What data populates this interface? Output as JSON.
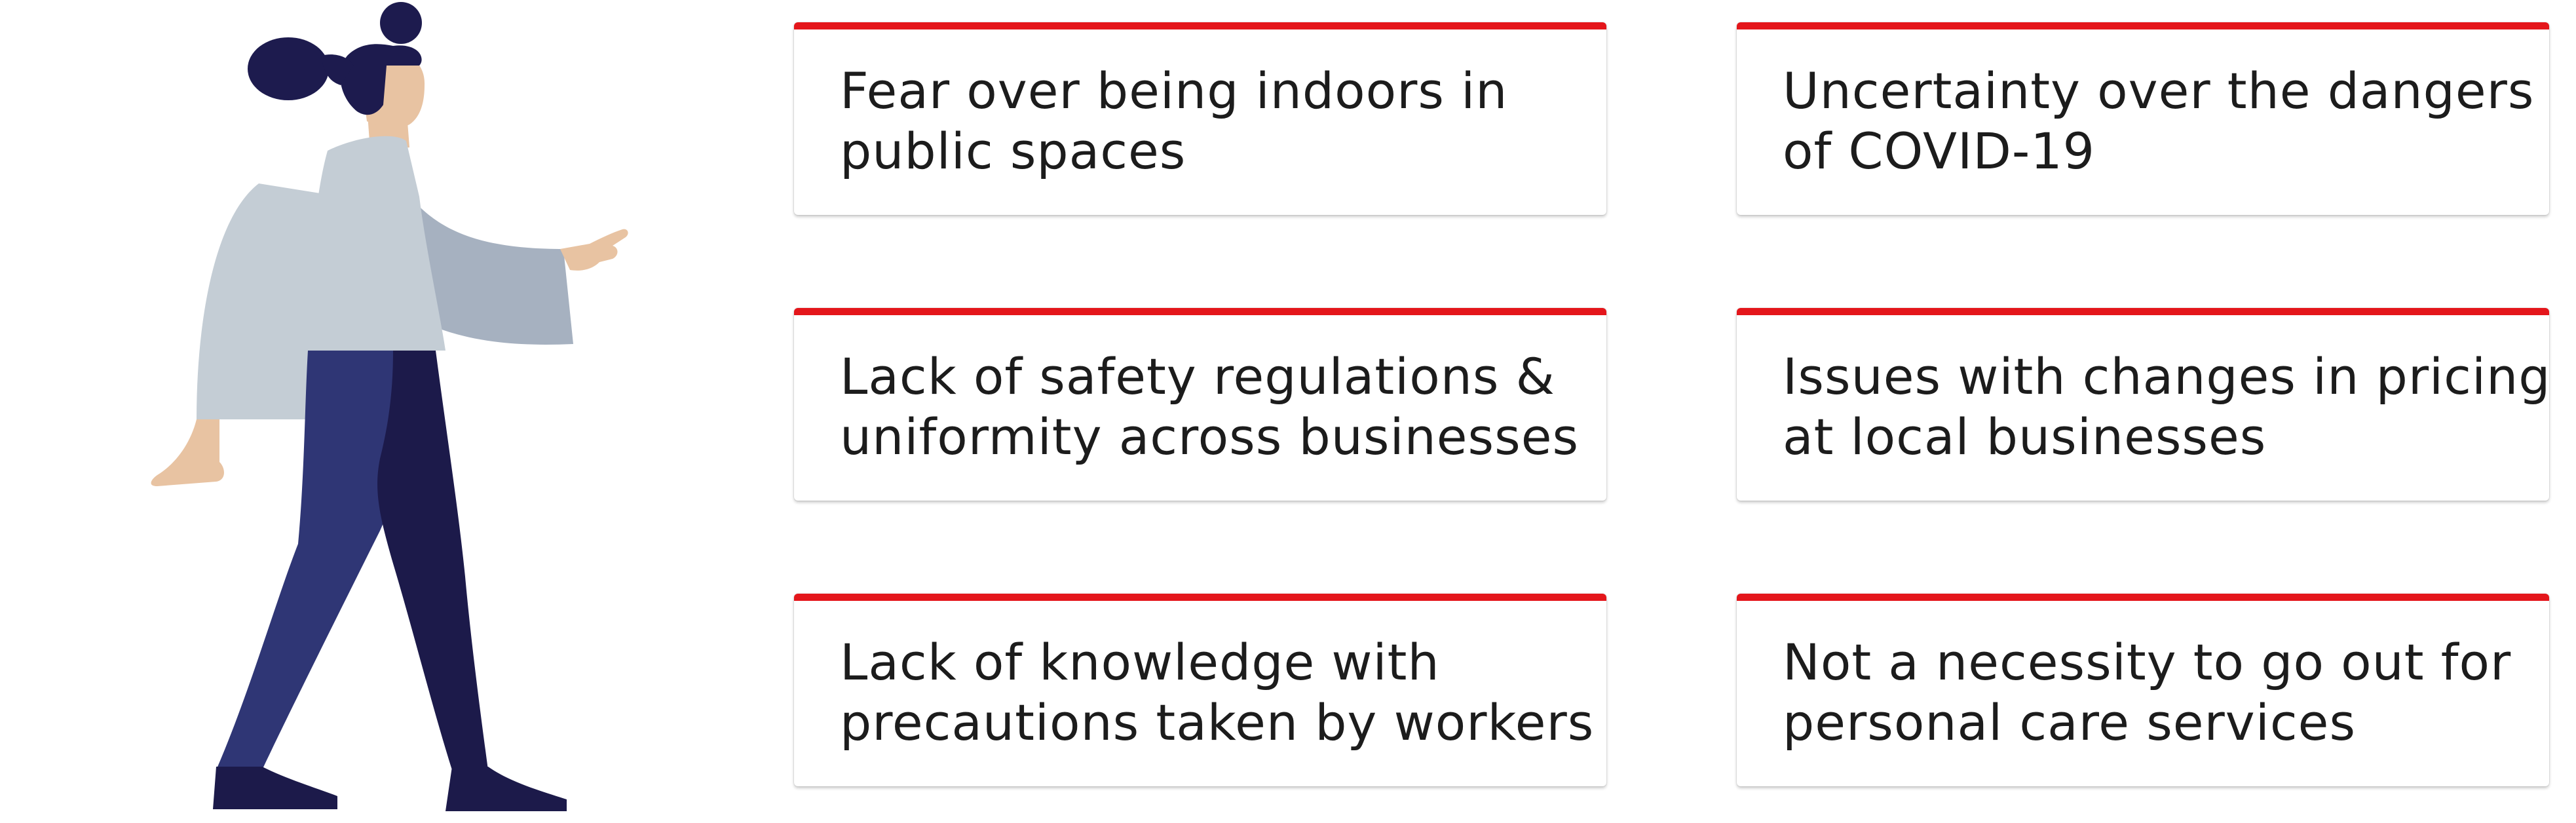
{
  "colors": {
    "accent": "#e4161b",
    "text": "#1c1c1c",
    "hair": "#1d1b4e",
    "skin": "#e8c3a2",
    "shirt": "#c4cdd5",
    "sleeve_shade": "#a6b1c0",
    "pants_front": "#2f3675",
    "pants_back": "#1c1a4a"
  },
  "illustration": {
    "icon": "walking-woman-illustration"
  },
  "cards": [
    {
      "lines": [
        "Fear over being indoors in",
        "public spaces"
      ]
    },
    {
      "lines": [
        "Uncertainty over the dangers",
        "of COVID-19"
      ]
    },
    {
      "lines": [
        "Lack of safety regulations &",
        "uniformity across businesses"
      ]
    },
    {
      "lines": [
        "Issues with changes in pricing",
        "at local businesses"
      ]
    },
    {
      "lines": [
        "Lack of knowledge with",
        "precautions taken by workers"
      ]
    },
    {
      "lines": [
        "Not a necessity to go out for",
        "personal care services"
      ]
    }
  ]
}
